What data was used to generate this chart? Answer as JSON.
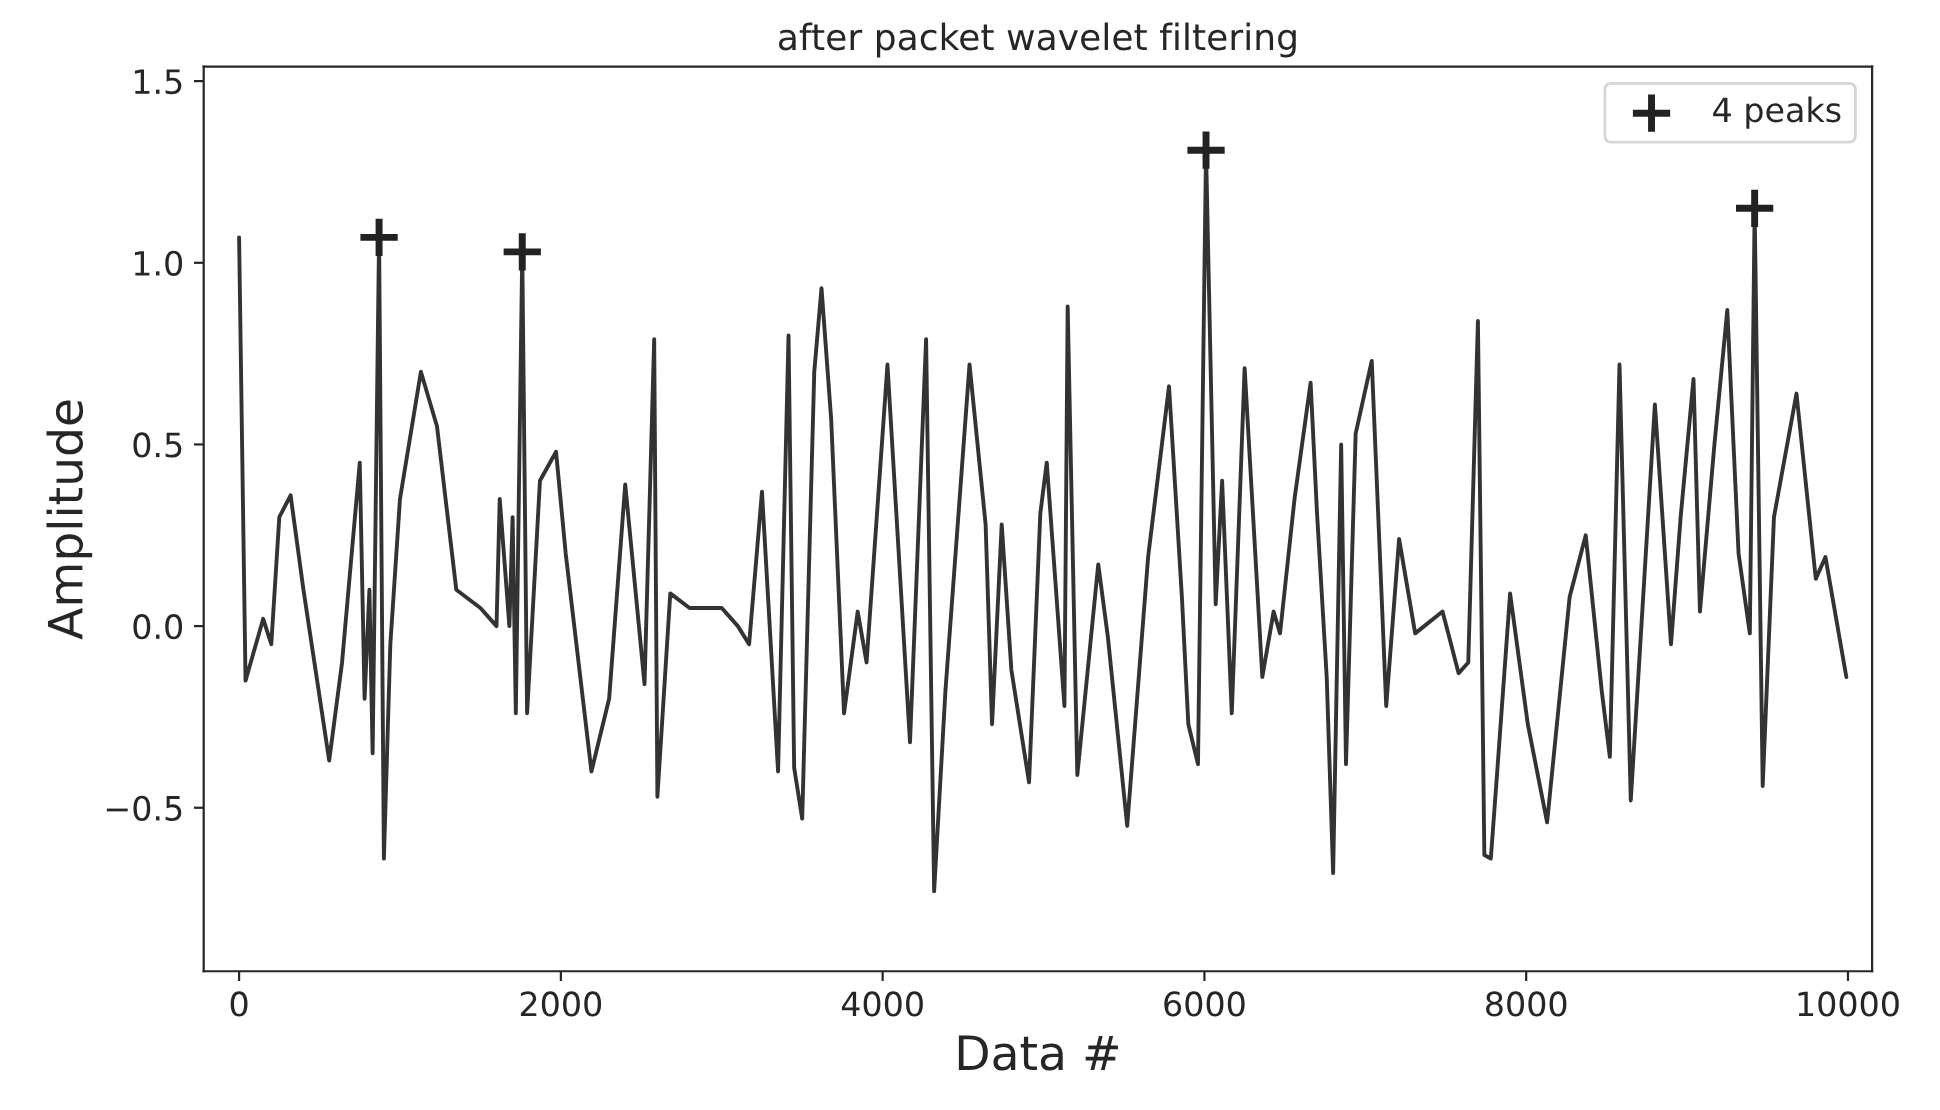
{
  "chart_data": {
    "type": "line",
    "title": "after packet wavelet filtering",
    "xlabel": "Data #",
    "ylabel": "Amplitude",
    "series": [
      {
        "color": "#333333",
        "x": [
          0,
          40,
          150,
          200,
          250,
          320,
          400,
          560,
          640,
          750,
          780,
          810,
          830,
          870,
          900,
          940,
          1000,
          1130,
          1230,
          1350,
          1500,
          1600,
          1620,
          1680,
          1700,
          1720,
          1760,
          1790,
          1820,
          1870,
          1970,
          2030,
          2190,
          2300,
          2400,
          2520,
          2580,
          2600,
          2680,
          2800,
          3000,
          3100,
          3170,
          3250,
          3350,
          3415,
          3450,
          3500,
          3575,
          3620,
          3680,
          3760,
          3845,
          3900,
          4030,
          4170,
          4270,
          4320,
          4390,
          4540,
          4640,
          4680,
          4740,
          4800,
          4910,
          4980,
          5020,
          5130,
          5150,
          5210,
          5340,
          5400,
          5520,
          5650,
          5780,
          5860,
          5900,
          5960,
          6010,
          6070,
          6110,
          6170,
          6250,
          6360,
          6430,
          6470,
          6560,
          6660,
          6700,
          6760,
          6800,
          6850,
          6880,
          6940,
          7040,
          7130,
          7210,
          7310,
          7480,
          7580,
          7640,
          7700,
          7740,
          7780,
          7820,
          7900,
          8010,
          8130,
          8270,
          8370,
          8470,
          8520,
          8580,
          8650,
          8800,
          8900,
          8960,
          9040,
          9080,
          9170,
          9250,
          9320,
          9390,
          9420,
          9470,
          9540,
          9680,
          9800,
          9860,
          9990
        ],
        "values": [
          1.07,
          -0.15,
          0.02,
          -0.05,
          0.3,
          0.36,
          0.1,
          -0.37,
          -0.1,
          0.45,
          -0.2,
          0.1,
          -0.35,
          1.07,
          -0.64,
          -0.05,
          0.35,
          0.7,
          0.55,
          0.1,
          0.05,
          0.0,
          0.35,
          0.0,
          0.3,
          -0.24,
          1.03,
          -0.24,
          0.0,
          0.4,
          0.48,
          0.2,
          -0.4,
          -0.2,
          0.39,
          -0.16,
          0.79,
          -0.47,
          0.09,
          0.05,
          0.05,
          0.0,
          -0.05,
          0.37,
          -0.4,
          0.8,
          -0.39,
          -0.53,
          0.7,
          0.93,
          0.57,
          -0.24,
          0.04,
          -0.1,
          0.72,
          -0.32,
          0.79,
          -0.73,
          -0.18,
          0.72,
          0.28,
          -0.27,
          0.28,
          -0.12,
          -0.43,
          0.31,
          0.45,
          -0.22,
          0.88,
          -0.41,
          0.17,
          -0.03,
          -0.55,
          0.19,
          0.66,
          0.08,
          -0.27,
          -0.38,
          1.31,
          0.06,
          0.4,
          -0.24,
          0.71,
          -0.14,
          0.04,
          -0.02,
          0.35,
          0.67,
          0.31,
          -0.14,
          -0.68,
          0.5,
          -0.38,
          0.53,
          0.73,
          -0.22,
          0.24,
          -0.02,
          0.04,
          -0.13,
          -0.1,
          0.84,
          -0.63,
          -0.64,
          -0.4,
          0.09,
          -0.27,
          -0.54,
          0.08,
          0.25,
          -0.18,
          -0.36,
          0.72,
          -0.48,
          0.61,
          -0.05,
          0.3,
          0.68,
          0.04,
          0.5,
          0.87,
          0.2,
          -0.02,
          1.15,
          -0.44,
          0.3,
          0.64,
          0.13,
          0.19,
          -0.14
        ]
      },
      {
        "type": "scatter",
        "name": "4 peaks",
        "color": "#222222",
        "marker": "cross",
        "x": [
          870,
          1760,
          6010,
          9420
        ],
        "values": [
          1.07,
          1.03,
          1.31,
          1.15
        ]
      }
    ],
    "xlim": [
      -220,
      10150
    ],
    "ylim": [
      -0.95,
      1.54
    ],
    "xticks": [
      0,
      2000,
      4000,
      6000,
      8000,
      10000
    ],
    "yticks": [
      {
        "value": -0.5,
        "label": "−0.5"
      },
      {
        "value": 0.0,
        "label": "0.0"
      },
      {
        "value": 0.5,
        "label": "0.5"
      },
      {
        "value": 1.0,
        "label": "1.0"
      },
      {
        "value": 1.5,
        "label": "1.5"
      }
    ],
    "legend": "top right",
    "grid": false
  }
}
